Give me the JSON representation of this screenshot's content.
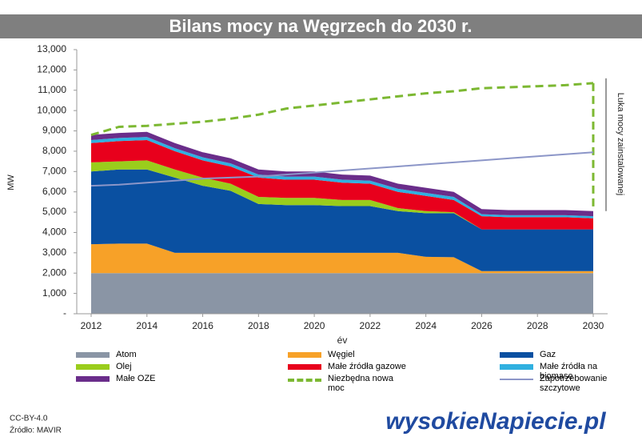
{
  "chart_data": {
    "type": "area",
    "stacked": true,
    "title": "Bilans mocy na Węgrzech do 2030 r.",
    "xlabel": "év",
    "ylabel": "MW",
    "annotation": "Luka mocy zainstalowanej",
    "x": [
      2012,
      2013,
      2014,
      2015,
      2016,
      2017,
      2018,
      2019,
      2020,
      2021,
      2022,
      2023,
      2024,
      2025,
      2026,
      2027,
      2028,
      2029,
      2030
    ],
    "xlim": [
      2012,
      2030
    ],
    "xticks": [
      2012,
      2014,
      2016,
      2018,
      2020,
      2022,
      2024,
      2026,
      2028,
      2030
    ],
    "ylim": [
      0,
      13000
    ],
    "yticks": [
      {
        "value": 0,
        "label": "-"
      },
      {
        "value": 1000,
        "label": "1,000"
      },
      {
        "value": 2000,
        "label": "2,000"
      },
      {
        "value": 3000,
        "label": "3,000"
      },
      {
        "value": 4000,
        "label": "4,000"
      },
      {
        "value": 5000,
        "label": "5,000"
      },
      {
        "value": 6000,
        "label": "6,000"
      },
      {
        "value": 7000,
        "label": "7,000"
      },
      {
        "value": 8000,
        "label": "8,000"
      },
      {
        "value": 9000,
        "label": "9,000"
      },
      {
        "value": 10000,
        "label": "10,000"
      },
      {
        "value": 11000,
        "label": "11,000"
      },
      {
        "value": 12000,
        "label": "12,000"
      },
      {
        "value": 13000,
        "label": "13,000"
      }
    ],
    "series": [
      {
        "name": "Atom",
        "color": "#8a95a5",
        "type": "area",
        "values": [
          2000,
          2000,
          2000,
          2000,
          2000,
          2000,
          2000,
          2000,
          2000,
          2000,
          2000,
          2000,
          2000,
          2000,
          2000,
          2000,
          2000,
          2000,
          2000
        ]
      },
      {
        "name": "Węgiel",
        "color": "#f7a128",
        "type": "area",
        "values": [
          1420,
          1450,
          1450,
          1000,
          1000,
          1000,
          1000,
          1000,
          1000,
          1000,
          1000,
          1000,
          800,
          780,
          100,
          100,
          100,
          100,
          100
        ]
      },
      {
        "name": "Gaz",
        "color": "#0a50a1",
        "type": "area",
        "values": [
          3580,
          3650,
          3650,
          3700,
          3300,
          3050,
          2400,
          2350,
          2350,
          2300,
          2300,
          2050,
          2150,
          2170,
          2050,
          2050,
          2050,
          2050,
          2050
        ]
      },
      {
        "name": "Olej",
        "color": "#9acd1c",
        "type": "area",
        "values": [
          450,
          400,
          450,
          400,
          400,
          350,
          350,
          350,
          350,
          300,
          300,
          150,
          100,
          50,
          0,
          0,
          0,
          0,
          0
        ]
      },
      {
        "name": "Małe źródła gazowe",
        "color": "#e8001c",
        "type": "area",
        "values": [
          950,
          1000,
          1000,
          900,
          850,
          850,
          950,
          900,
          900,
          850,
          800,
          800,
          750,
          600,
          650,
          600,
          600,
          600,
          550
        ]
      },
      {
        "name": "Małe źródła na biomasę",
        "color": "#30b0e0",
        "type": "area",
        "values": [
          150,
          150,
          150,
          150,
          150,
          150,
          150,
          150,
          150,
          150,
          150,
          150,
          150,
          150,
          100,
          100,
          100,
          100,
          100
        ]
      },
      {
        "name": "Małe OZE",
        "color": "#6a2d8a",
        "type": "area",
        "values": [
          250,
          250,
          250,
          250,
          250,
          250,
          250,
          250,
          250,
          250,
          250,
          250,
          250,
          250,
          250,
          250,
          250,
          250,
          250
        ]
      },
      {
        "name": "Niezbędna nowa moc",
        "color": "#7cb832",
        "type": "line",
        "dashed": true,
        "values": [
          8800,
          9200,
          9250,
          9350,
          9450,
          9600,
          9800,
          10100,
          10250,
          10400,
          10550,
          10700,
          10850,
          10950,
          11100,
          11150,
          11200,
          11250,
          11350
        ]
      },
      {
        "name": "Zapotrzebowanie szczytowe",
        "color": "#8c96c8",
        "type": "line",
        "dashed": false,
        "values": [
          6300,
          6350,
          6450,
          6550,
          6650,
          6700,
          6750,
          6850,
          6950,
          7050,
          7150,
          7250,
          7350,
          7450,
          7550,
          7650,
          7750,
          7850,
          7950
        ]
      }
    ],
    "license": "CC-BY-4.0",
    "source": "Źródło: MAVIR",
    "logo": "wysokieNapiecie.pl"
  }
}
